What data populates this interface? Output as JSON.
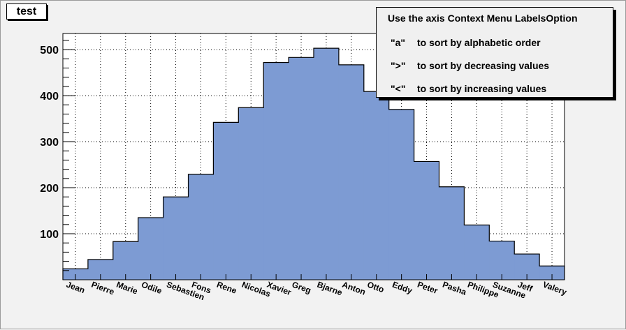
{
  "window": {
    "title": "test"
  },
  "legend": {
    "heading": "Use the axis Context Menu LabelsOption",
    "items": [
      {
        "key": "\"a\"",
        "text": "to sort by alphabetic order"
      },
      {
        "key": "\">\"",
        "text": "to sort by decreasing values"
      },
      {
        "key": "\"<\"",
        "text": "to sort by increasing values"
      }
    ]
  },
  "chart_data": {
    "type": "bar",
    "title": "test",
    "categories": [
      "Jean",
      "Pierre",
      "Marie",
      "Odile",
      "Sebastien",
      "Fons",
      "Rene",
      "Nicolas",
      "Xavier",
      "Greg",
      "Bjarne",
      "Anton",
      "Otto",
      "Eddy",
      "Peter",
      "Pasha",
      "Philippe",
      "Suzanne",
      "Jeff",
      "Valery"
    ],
    "values": [
      24,
      44,
      83,
      135,
      180,
      229,
      342,
      374,
      472,
      483,
      503,
      467,
      409,
      370,
      257,
      202,
      119,
      84,
      56,
      30
    ],
    "ylim": [
      0,
      535
    ],
    "yticks": [
      100,
      200,
      300,
      400,
      500
    ],
    "grid": true,
    "colors": {
      "fill": "#7d9bd3",
      "line": "#000000"
    }
  }
}
